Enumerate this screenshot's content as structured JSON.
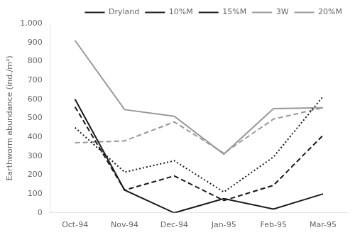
{
  "chart_data": {
    "type": "line",
    "categories": [
      "Oct-94",
      "Nov-94",
      "Dec-94",
      "Jan-95",
      "Feb-95",
      "Mar-95"
    ],
    "series": [
      {
        "name": "Dryland",
        "color": "#1a1a1a",
        "line_style": "solid",
        "values": [
          600,
          120,
          0,
          75,
          20,
          100
        ]
      },
      {
        "name": "10%M",
        "color": "#1a1a1a",
        "line_style": "dashed",
        "values": [
          560,
          120,
          195,
          65,
          145,
          410
        ]
      },
      {
        "name": "15%M",
        "color": "#1a1a1a",
        "line_style": "dotted",
        "values": [
          450,
          215,
          275,
          110,
          295,
          615
        ]
      },
      {
        "name": "3W",
        "color": "#999999",
        "line_style": "dashed",
        "values": [
          370,
          380,
          480,
          315,
          495,
          555
        ]
      },
      {
        "name": "20%M",
        "color": "#999999",
        "line_style": "solid",
        "values": [
          910,
          545,
          510,
          310,
          550,
          555
        ]
      }
    ],
    "ylabel": "Earthworm abundance (ind./m²)",
    "ylim": [
      0,
      1000
    ],
    "yticks": [
      0,
      100,
      200,
      300,
      400,
      500,
      600,
      700,
      800,
      900,
      1000
    ],
    "grid": false,
    "legend": "upper right"
  }
}
